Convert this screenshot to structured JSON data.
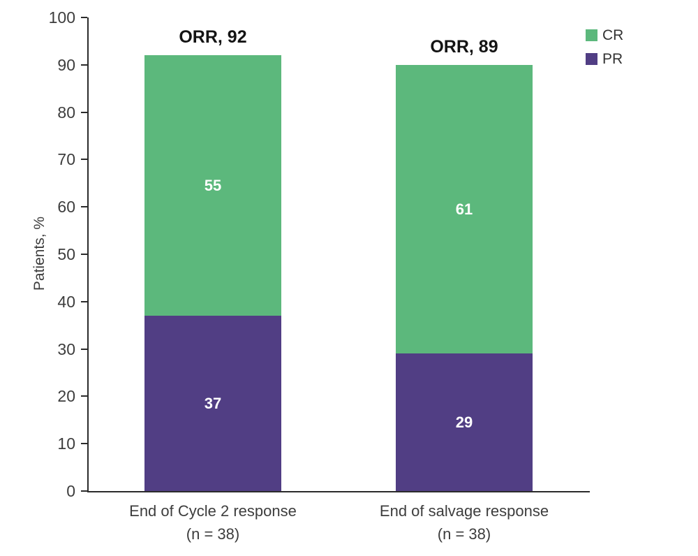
{
  "chart_data": {
    "type": "bar",
    "stacked": true,
    "title": "",
    "ylabel": "Patients, %",
    "ylim": [
      0,
      100
    ],
    "ytick_step": 10,
    "grid": false,
    "legend_position": "top-right",
    "categories": [
      {
        "line1": "End of Cycle 2 response",
        "line2": "(n = 38)"
      },
      {
        "line1": "End of salvage response",
        "line2": "(n = 38)"
      }
    ],
    "series": [
      {
        "name": "CR",
        "color": "#5cb87c",
        "values": [
          55,
          61
        ]
      },
      {
        "name": "PR",
        "color": "#513e84",
        "values": [
          37,
          29
        ]
      }
    ],
    "total_labels": [
      "ORR, 92",
      "ORR, 89"
    ],
    "totals": [
      92,
      90
    ]
  },
  "colors": {
    "axis": "#2b2b2b",
    "tick_text": "#3d3d3d",
    "orr_text": "#141414",
    "segment_value_text": "#ffffff",
    "background": "#ffffff",
    "cr_green": "#5cb87c",
    "pr_purple": "#513e84"
  }
}
